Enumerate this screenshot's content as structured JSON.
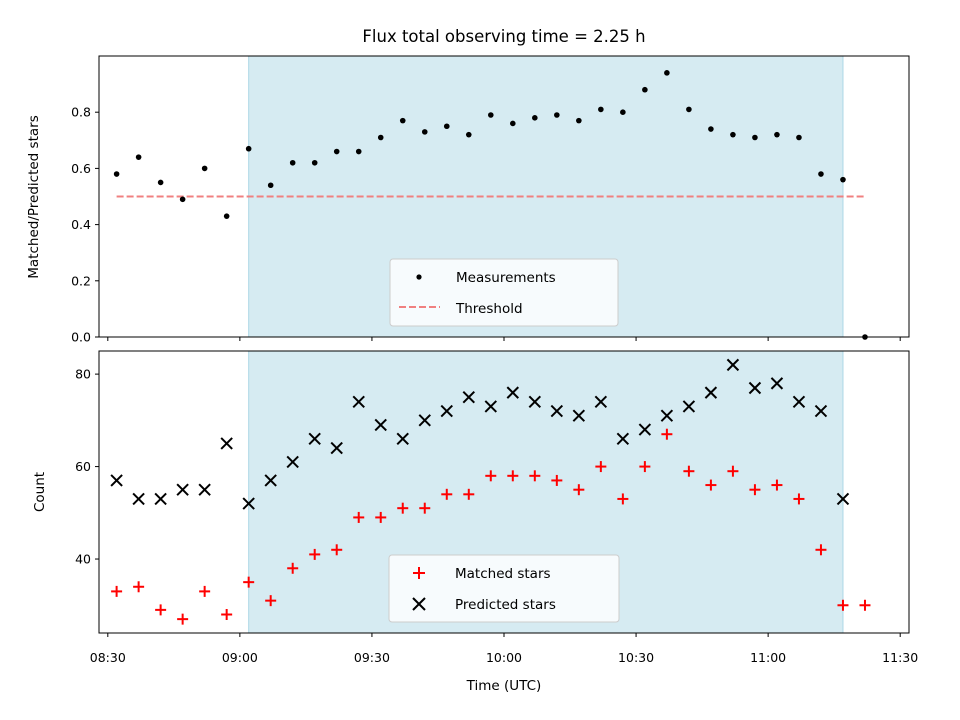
{
  "title": "Flux total observing time = 2.25 h",
  "colors": {
    "shaded": "#add8e6",
    "measurement": "#000000",
    "threshold": "#f08080",
    "matched": "#ff0000",
    "predicted": "#000000"
  },
  "chart_data": [
    {
      "type": "scatter",
      "ylabel": "Matched/Predicted stars",
      "xlabel": "",
      "ylim": [
        0,
        1.0
      ],
      "yticks": [
        "0.0",
        "0.2",
        "0.4",
        "0.6",
        "0.8"
      ],
      "ytick_values": [
        0,
        0.2,
        0.4,
        0.6,
        0.8
      ],
      "shaded_interval": [
        "09:02",
        "11:17"
      ],
      "legend": {
        "location": "lower-center",
        "entries": [
          "Measurements",
          "Threshold"
        ]
      },
      "series": [
        {
          "name": "Measurements",
          "marker": "dot",
          "x": [
            "08:32",
            "08:37",
            "08:42",
            "08:47",
            "08:52",
            "08:57",
            "09:02",
            "09:07",
            "09:12",
            "09:17",
            "09:22",
            "09:27",
            "09:32",
            "09:37",
            "09:42",
            "09:47",
            "09:52",
            "09:57",
            "10:02",
            "10:07",
            "10:12",
            "10:17",
            "10:22",
            "10:27",
            "10:32",
            "10:37",
            "10:42",
            "10:47",
            "10:52",
            "10:57",
            "11:02",
            "11:07",
            "11:12",
            "11:17",
            "11:22"
          ],
          "y": [
            0.58,
            0.64,
            0.55,
            0.49,
            0.6,
            0.43,
            0.67,
            0.54,
            0.62,
            0.62,
            0.66,
            0.66,
            0.71,
            0.77,
            0.73,
            0.75,
            0.72,
            0.79,
            0.76,
            0.78,
            0.79,
            0.77,
            0.81,
            0.8,
            0.88,
            0.94,
            0.81,
            0.74,
            0.72,
            0.71,
            0.72,
            0.71,
            0.58,
            0.56,
            0.0
          ]
        },
        {
          "name": "Threshold",
          "marker": "dashed-line",
          "x": [
            "08:32",
            "11:22"
          ],
          "y": [
            0.5,
            0.5
          ]
        }
      ]
    },
    {
      "type": "scatter",
      "ylabel": "Count",
      "xlabel": "Time (UTC)",
      "ylim": [
        24,
        85
      ],
      "yticks": [
        "40",
        "60",
        "80"
      ],
      "ytick_values": [
        40,
        60,
        80
      ],
      "xticks": [
        "08:30",
        "09:00",
        "09:30",
        "10:00",
        "10:30",
        "11:00",
        "11:30"
      ],
      "xlim": [
        "08:28",
        "11:32"
      ],
      "shaded_interval": [
        "09:02",
        "11:17"
      ],
      "legend": {
        "location": "lower-center",
        "entries": [
          "Matched stars",
          "Predicted stars"
        ]
      },
      "series": [
        {
          "name": "Matched stars",
          "marker": "plus",
          "x": [
            "08:32",
            "08:37",
            "08:42",
            "08:47",
            "08:52",
            "08:57",
            "09:02",
            "09:07",
            "09:12",
            "09:17",
            "09:22",
            "09:27",
            "09:32",
            "09:37",
            "09:42",
            "09:47",
            "09:52",
            "09:57",
            "10:02",
            "10:07",
            "10:12",
            "10:17",
            "10:22",
            "10:27",
            "10:32",
            "10:37",
            "10:42",
            "10:47",
            "10:52",
            "10:57",
            "11:02",
            "11:07",
            "11:12",
            "11:17",
            "11:22"
          ],
          "y": [
            33,
            34,
            29,
            27,
            33,
            28,
            35,
            31,
            38,
            41,
            42,
            49,
            49,
            51,
            51,
            54,
            54,
            58,
            58,
            58,
            57,
            55,
            60,
            53,
            60,
            67,
            59,
            56,
            59,
            55,
            56,
            53,
            42,
            30,
            30
          ]
        },
        {
          "name": "Predicted stars",
          "marker": "x",
          "x": [
            "08:32",
            "08:37",
            "08:42",
            "08:47",
            "08:52",
            "08:57",
            "09:02",
            "09:07",
            "09:12",
            "09:17",
            "09:22",
            "09:27",
            "09:32",
            "09:37",
            "09:42",
            "09:47",
            "09:52",
            "09:57",
            "10:02",
            "10:07",
            "10:12",
            "10:17",
            "10:22",
            "10:27",
            "10:32",
            "10:37",
            "10:42",
            "10:47",
            "10:52",
            "10:57",
            "11:02",
            "11:07",
            "11:12",
            "11:17"
          ],
          "y": [
            57,
            53,
            53,
            55,
            55,
            65,
            52,
            57,
            61,
            66,
            64,
            74,
            69,
            66,
            70,
            72,
            75,
            73,
            76,
            74,
            72,
            71,
            74,
            66,
            68,
            71,
            73,
            76,
            82,
            77,
            78,
            74,
            72,
            53
          ]
        }
      ]
    }
  ]
}
